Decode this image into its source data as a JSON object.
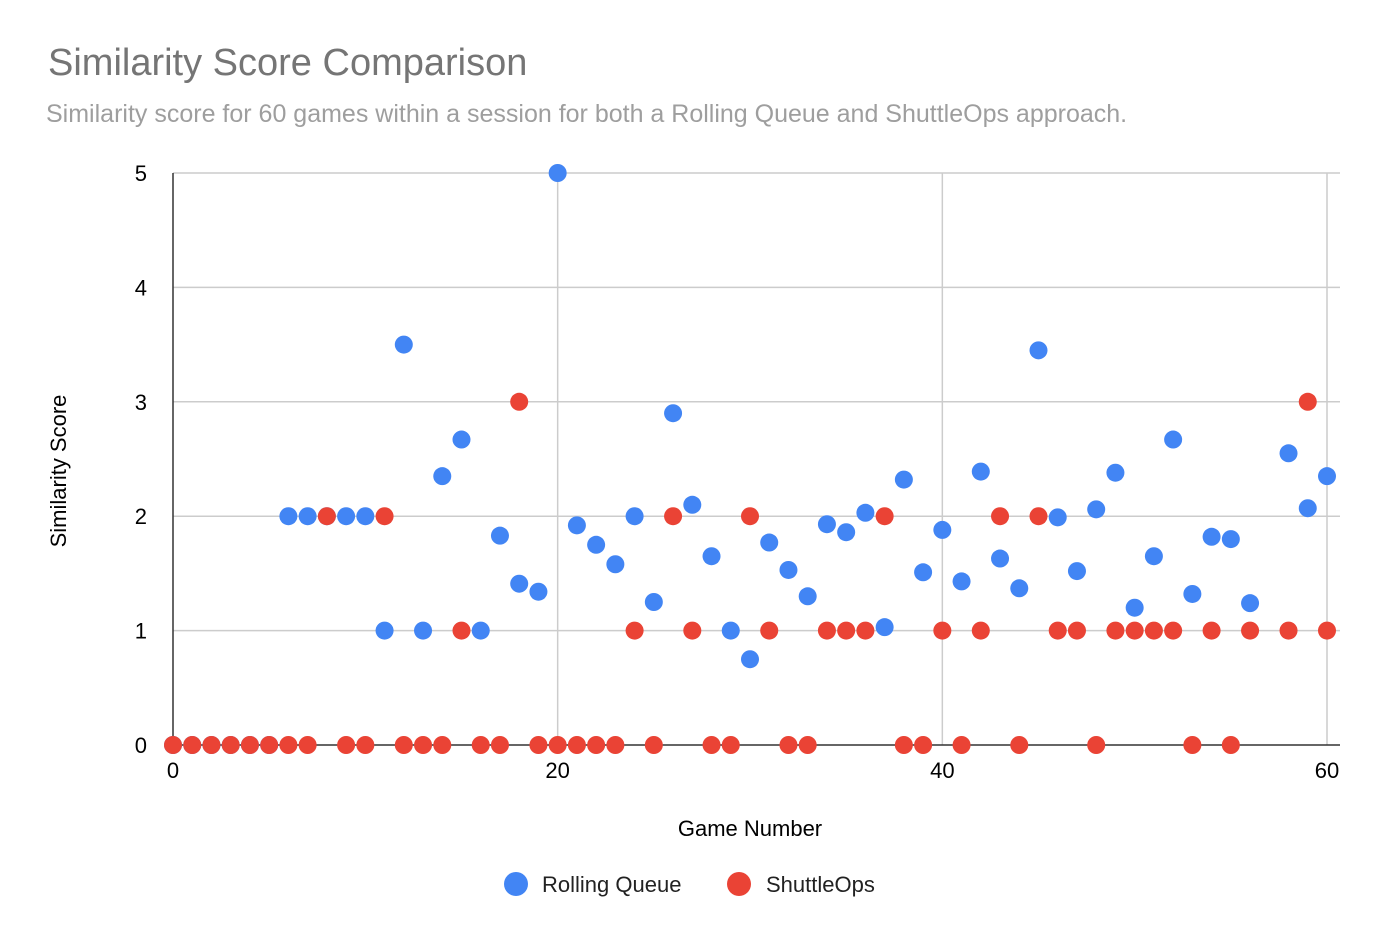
{
  "chart_data": {
    "type": "scatter",
    "title": "Similarity Score Comparison",
    "subtitle": "Similarity score for 60 games within a session for both a Rolling Queue and ShuttleOps approach.",
    "xlabel": "Game Number",
    "ylabel": "Similarity Score",
    "xlim": [
      0,
      60
    ],
    "ylim": [
      0,
      5
    ],
    "xticks": [
      0,
      20,
      40,
      60
    ],
    "yticks": [
      0,
      1,
      2,
      3,
      4,
      5
    ],
    "grid": true,
    "legend": "bottom",
    "series": [
      {
        "name": "Rolling Queue",
        "color": "#4285f4",
        "points": [
          [
            0,
            0
          ],
          [
            1,
            0
          ],
          [
            2,
            0
          ],
          [
            3,
            0
          ],
          [
            4,
            0
          ],
          [
            5,
            0
          ],
          [
            6,
            2
          ],
          [
            7,
            2
          ],
          [
            8,
            2
          ],
          [
            9,
            2
          ],
          [
            10,
            2
          ],
          [
            11,
            1
          ],
          [
            12,
            3.5
          ],
          [
            13,
            1
          ],
          [
            14,
            2.35
          ],
          [
            15,
            2.67
          ],
          [
            16,
            1
          ],
          [
            17,
            1.83
          ],
          [
            18,
            1.41
          ],
          [
            19,
            1.34
          ],
          [
            20,
            5
          ],
          [
            21,
            1.92
          ],
          [
            22,
            1.75
          ],
          [
            23,
            1.58
          ],
          [
            24,
            2
          ],
          [
            25,
            1.25
          ],
          [
            26,
            2.9
          ],
          [
            27,
            2.1
          ],
          [
            28,
            1.65
          ],
          [
            29,
            1
          ],
          [
            30,
            0.75
          ],
          [
            31,
            1.77
          ],
          [
            32,
            1.53
          ],
          [
            33,
            1.3
          ],
          [
            34,
            1.93
          ],
          [
            35,
            1.86
          ],
          [
            36,
            2.03
          ],
          [
            37,
            1.03
          ],
          [
            38,
            2.32
          ],
          [
            39,
            1.51
          ],
          [
            40,
            1.88
          ],
          [
            41,
            1.43
          ],
          [
            42,
            2.39
          ],
          [
            43,
            1.63
          ],
          [
            44,
            1.37
          ],
          [
            45,
            3.45
          ],
          [
            46,
            1.99
          ],
          [
            47,
            1.52
          ],
          [
            48,
            2.06
          ],
          [
            49,
            2.38
          ],
          [
            50,
            1.2
          ],
          [
            51,
            1.65
          ],
          [
            52,
            2.67
          ],
          [
            53,
            1.32
          ],
          [
            54,
            1.82
          ],
          [
            55,
            1.8
          ],
          [
            56,
            1.24
          ],
          [
            58,
            2.55
          ],
          [
            59,
            2.07
          ],
          [
            60,
            2.35
          ]
        ]
      },
      {
        "name": "ShuttleOps",
        "color": "#ea4335",
        "points": [
          [
            0,
            0
          ],
          [
            1,
            0
          ],
          [
            2,
            0
          ],
          [
            3,
            0
          ],
          [
            4,
            0
          ],
          [
            5,
            0
          ],
          [
            6,
            0
          ],
          [
            7,
            0
          ],
          [
            8,
            2
          ],
          [
            9,
            0
          ],
          [
            10,
            0
          ],
          [
            11,
            2
          ],
          [
            12,
            0
          ],
          [
            13,
            0
          ],
          [
            14,
            0
          ],
          [
            15,
            1
          ],
          [
            16,
            0
          ],
          [
            17,
            0
          ],
          [
            18,
            3
          ],
          [
            19,
            0
          ],
          [
            20,
            0
          ],
          [
            21,
            0
          ],
          [
            22,
            0
          ],
          [
            23,
            0
          ],
          [
            24,
            1
          ],
          [
            25,
            0
          ],
          [
            26,
            2
          ],
          [
            27,
            1
          ],
          [
            28,
            0
          ],
          [
            29,
            0
          ],
          [
            30,
            2
          ],
          [
            31,
            1
          ],
          [
            32,
            0
          ],
          [
            33,
            0
          ],
          [
            34,
            1
          ],
          [
            35,
            1
          ],
          [
            36,
            1
          ],
          [
            37,
            2
          ],
          [
            38,
            0
          ],
          [
            39,
            0
          ],
          [
            40,
            1
          ],
          [
            41,
            0
          ],
          [
            42,
            1
          ],
          [
            43,
            2
          ],
          [
            44,
            0
          ],
          [
            45,
            2
          ],
          [
            46,
            1
          ],
          [
            47,
            1
          ],
          [
            48,
            0
          ],
          [
            49,
            1
          ],
          [
            50,
            1
          ],
          [
            51,
            1
          ],
          [
            52,
            1
          ],
          [
            53,
            0
          ],
          [
            54,
            1
          ],
          [
            55,
            0
          ],
          [
            56,
            1
          ],
          [
            58,
            1
          ],
          [
            59,
            3
          ],
          [
            60,
            1
          ]
        ]
      }
    ]
  }
}
